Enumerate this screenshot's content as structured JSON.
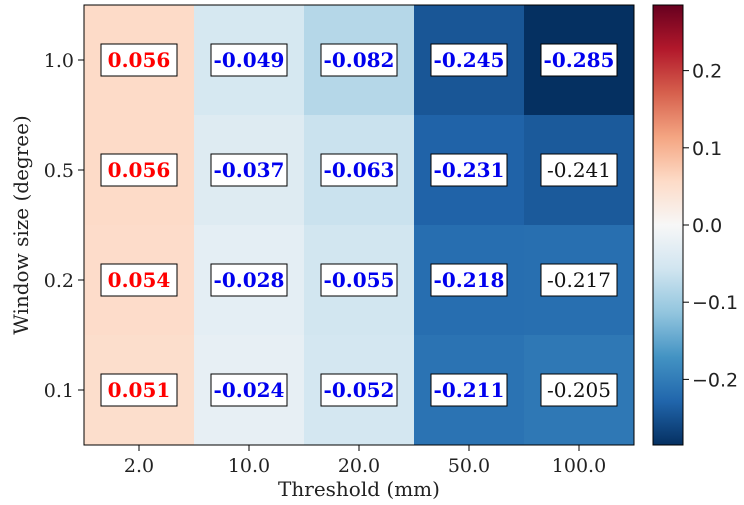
{
  "chart_data": {
    "type": "heatmap",
    "xlabel": "Threshold (mm)",
    "ylabel": "Window size (degree)",
    "x_categories": [
      "2.0",
      "10.0",
      "20.0",
      "50.0",
      "100.0"
    ],
    "y_categories": [
      "1.0",
      "0.5",
      "0.2",
      "0.1"
    ],
    "values": [
      [
        0.056,
        -0.049,
        -0.082,
        -0.245,
        -0.285
      ],
      [
        0.056,
        -0.037,
        -0.063,
        -0.231,
        -0.241
      ],
      [
        0.054,
        -0.028,
        -0.055,
        -0.218,
        -0.217
      ],
      [
        0.051,
        -0.024,
        -0.052,
        -0.211,
        -0.205
      ]
    ],
    "labels": [
      [
        "0.056",
        "-0.049",
        "-0.082",
        "-0.245",
        "-0.285"
      ],
      [
        "0.056",
        "-0.037",
        "-0.063",
        "-0.231",
        "-0.241"
      ],
      [
        "0.054",
        "-0.028",
        "-0.055",
        "-0.218",
        "-0.217"
      ],
      [
        "0.051",
        "-0.024",
        "-0.052",
        "-0.211",
        "-0.205"
      ]
    ],
    "label_styles": [
      [
        "red",
        "blue",
        "blue",
        "blue",
        "blue"
      ],
      [
        "red",
        "blue",
        "blue",
        "blue",
        "plain"
      ],
      [
        "red",
        "blue",
        "blue",
        "blue",
        "plain"
      ],
      [
        "red",
        "blue",
        "blue",
        "blue",
        "plain"
      ]
    ],
    "style_colors": {
      "red": "#ff0000",
      "blue": "#0000ee",
      "plain": "#111111"
    },
    "colormap": "RdBu_r",
    "vmin": -0.285,
    "vmax": 0.285,
    "colorbar_ticks": [
      "0.2",
      "0.1",
      "0.0",
      "−0.1",
      "−0.2"
    ],
    "colorbar_tick_values": [
      0.2,
      0.1,
      0.0,
      -0.1,
      -0.2
    ]
  }
}
